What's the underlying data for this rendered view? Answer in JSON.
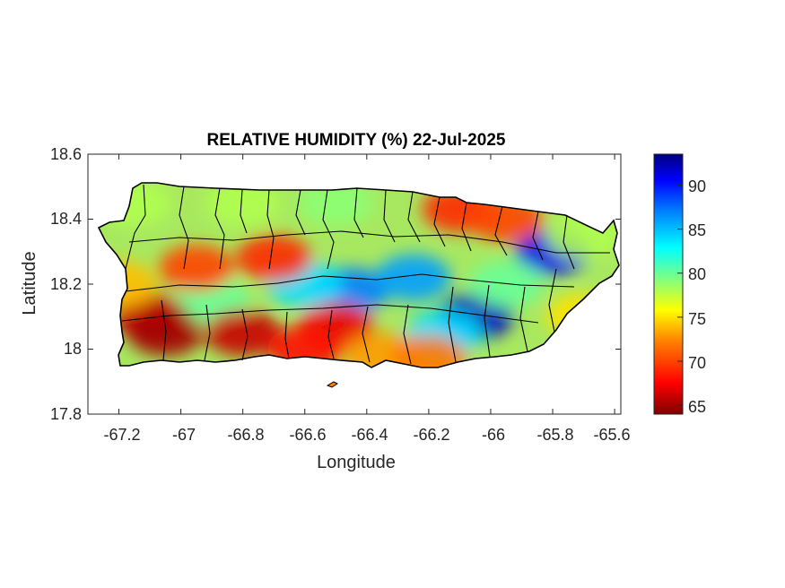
{
  "title": "RELATIVE HUMIDITY (%) 22-Jul-2025",
  "xlabel": "Longitude",
  "ylabel": "Latitude",
  "x_ticks": [
    "-67.2",
    "-67",
    "-66.8",
    "-66.6",
    "-66.4",
    "-66.2",
    "-66",
    "-65.8",
    "-65.6"
  ],
  "y_ticks": [
    "18.6",
    "18.4",
    "18.2",
    "18",
    "17.8"
  ],
  "colorbar_ticks": [
    "90",
    "85",
    "80",
    "75",
    "70",
    "65"
  ],
  "chart_data": {
    "type": "heatmap",
    "title": "RELATIVE HUMIDITY (%) 22-Jul-2025",
    "xlabel": "Longitude",
    "ylabel": "Latitude",
    "xlim": [
      -67.3,
      -65.58
    ],
    "ylim": [
      17.8,
      18.6
    ],
    "x_ticks": [
      -67.2,
      -67,
      -66.8,
      -66.6,
      -66.4,
      -66.2,
      -66,
      -65.8,
      -65.6
    ],
    "y_ticks": [
      17.8,
      18,
      18.2,
      18.4,
      18.6
    ],
    "colorbar": {
      "label": "",
      "range": [
        64,
        93.5
      ],
      "ticks": [
        65,
        70,
        75,
        80,
        85,
        90
      ],
      "colormap": "jet",
      "colors": [
        "#800000",
        "#ff0000",
        "#ff8000",
        "#ffff00",
        "#80ff80",
        "#00ffff",
        "#0080ff",
        "#0000ff",
        "#000080"
      ]
    },
    "region": "Puerto Rico",
    "grid": false,
    "features": [
      {
        "lon": -66.05,
        "lat": 18.1,
        "value": 92
      },
      {
        "lon": -65.8,
        "lat": 18.3,
        "value": 91
      },
      {
        "lon": -66.45,
        "lat": 18.18,
        "value": 87
      },
      {
        "lon": -66.25,
        "lat": 18.22,
        "value": 86
      },
      {
        "lon": -66.6,
        "lat": 18.2,
        "value": 84
      },
      {
        "lon": -66.15,
        "lat": 18.05,
        "value": 84
      },
      {
        "lon": -65.95,
        "lat": 18.2,
        "value": 80
      },
      {
        "lon": -66.9,
        "lat": 18.15,
        "value": 80
      },
      {
        "lon": -67.1,
        "lat": 18.1,
        "value": 66
      },
      {
        "lon": -67.05,
        "lat": 18.05,
        "value": 65
      },
      {
        "lon": -66.8,
        "lat": 18.05,
        "value": 66
      },
      {
        "lon": -66.5,
        "lat": 18.07,
        "value": 67
      },
      {
        "lon": -66.6,
        "lat": 18.0,
        "value": 68
      },
      {
        "lon": -66.1,
        "lat": 18.43,
        "value": 69
      },
      {
        "lon": -65.95,
        "lat": 18.4,
        "value": 70
      },
      {
        "lon": -66.7,
        "lat": 18.28,
        "value": 69
      },
      {
        "lon": -66.95,
        "lat": 18.25,
        "value": 70
      },
      {
        "lon": -67.15,
        "lat": 18.45,
        "value": 78
      },
      {
        "lon": -66.8,
        "lat": 18.45,
        "value": 78
      },
      {
        "lon": -66.5,
        "lat": 18.45,
        "value": 79
      },
      {
        "lon": -65.7,
        "lat": 18.35,
        "value": 78
      },
      {
        "lon": -65.7,
        "lat": 18.1,
        "value": 75
      },
      {
        "lon": -66.35,
        "lat": 17.98,
        "value": 73
      },
      {
        "lon": -66.2,
        "lat": 17.97,
        "value": 72
      },
      {
        "lon": -67.2,
        "lat": 18.2,
        "value": 74
      }
    ]
  }
}
